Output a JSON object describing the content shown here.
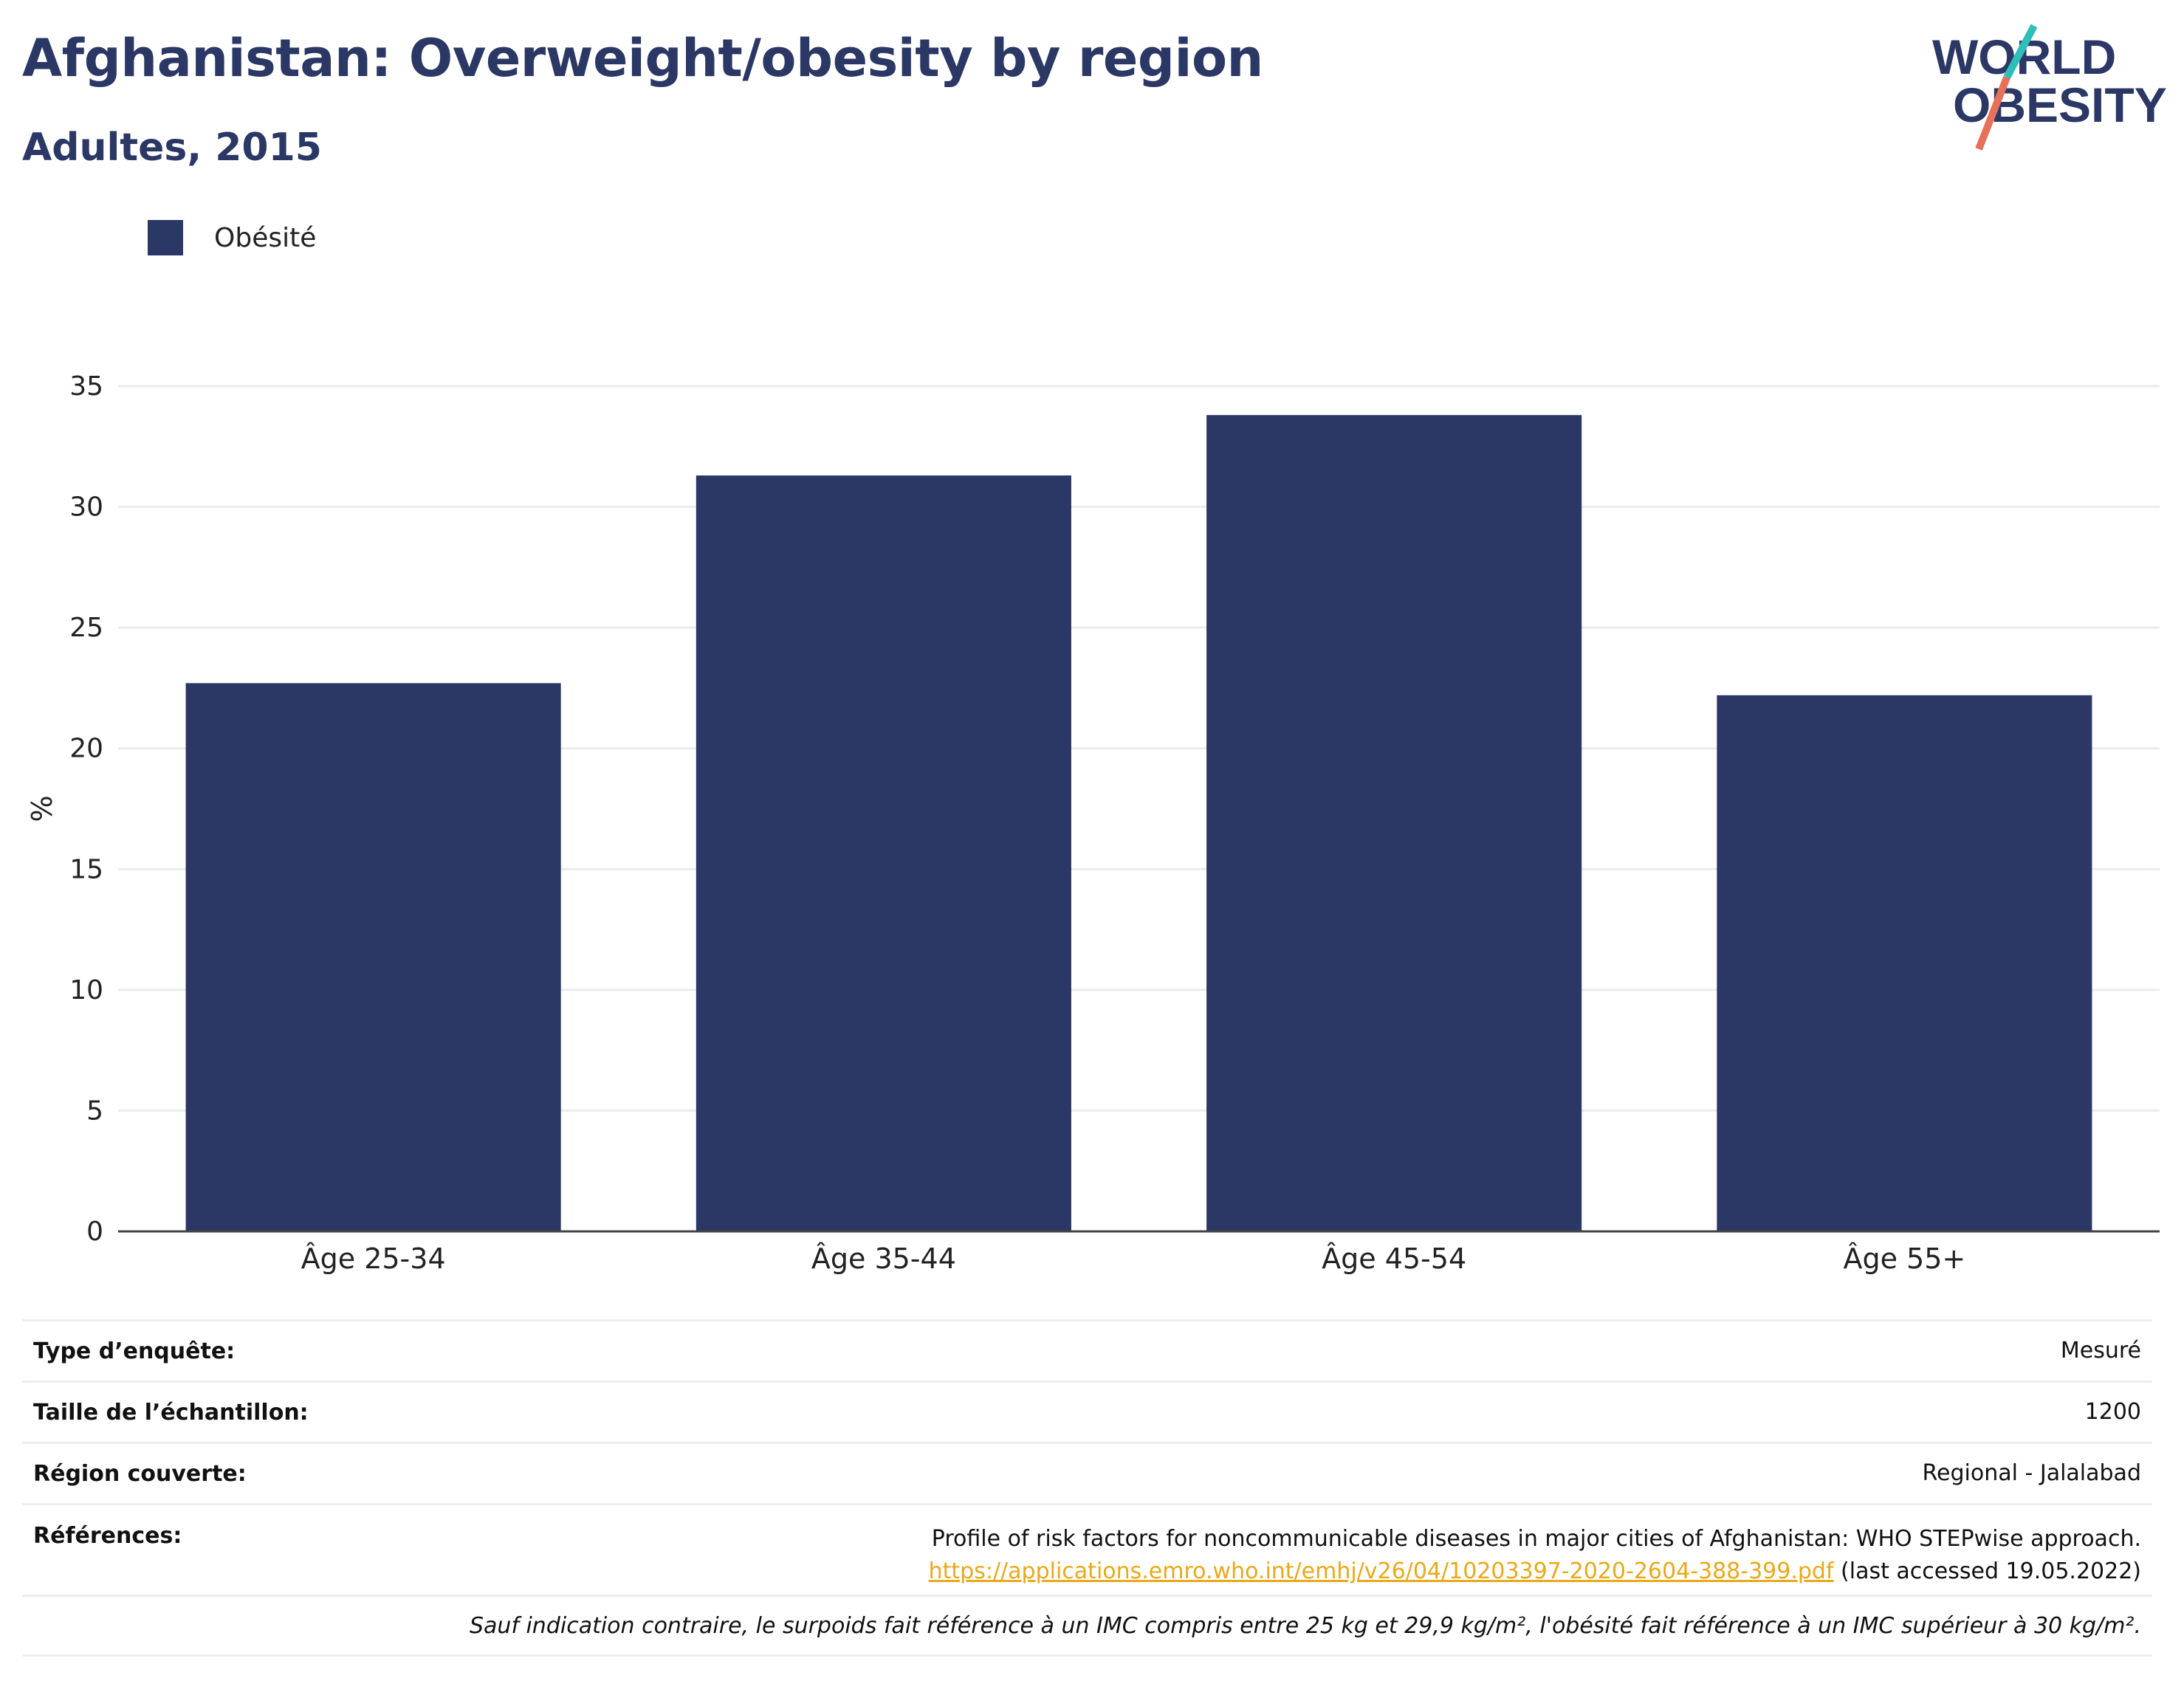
{
  "header": {
    "title": "Afghanistan: Overweight/obesity by region",
    "subtitle": "Adultes, 2015"
  },
  "logo": {
    "line1": "WORLD",
    "line2": "OBESITY"
  },
  "colors": {
    "bar": "#2b3765",
    "title": "#2b3765",
    "link": "#e8a91a",
    "logo_teal": "#2fbfb8",
    "logo_coral": "#e8705a"
  },
  "chart_data": {
    "type": "bar",
    "categories": [
      "Âge 25-34",
      "Âge 35-44",
      "Âge 45-54",
      "Âge 55+"
    ],
    "series": [
      {
        "name": "Obésité",
        "values": [
          22.7,
          31.3,
          33.8,
          22.2
        ]
      }
    ],
    "ylabel": "%",
    "xlabel": "",
    "ylim": [
      0,
      35
    ],
    "yticks": [
      0,
      5,
      10,
      15,
      20,
      25,
      30,
      35
    ],
    "grid": true,
    "legend_position": "top-left"
  },
  "info": {
    "survey_type_label": "Type d’enquête:",
    "survey_type_value": "Mesuré",
    "sample_size_label": "Taille de l’échantillon:",
    "sample_size_value": "1200",
    "region_label": "Région couverte:",
    "region_value": "Regional - Jalalabad",
    "references_label": "Références:",
    "reference_text": "Profile of risk factors for noncommunicable diseases in major cities of Afghanistan: WHO STEPwise approach.",
    "reference_link": "https://applications.emro.who.int/emhj/v26/04/10203397-2020-2604-388-399.pdf",
    "reference_accessed": " (last accessed 19.05.2022)",
    "footnote": "Sauf indication contraire, le surpoids fait référence à un IMC compris entre 25 kg et 29,9 kg/m², l'obésité fait référence à un IMC supérieur à 30 kg/m²."
  }
}
